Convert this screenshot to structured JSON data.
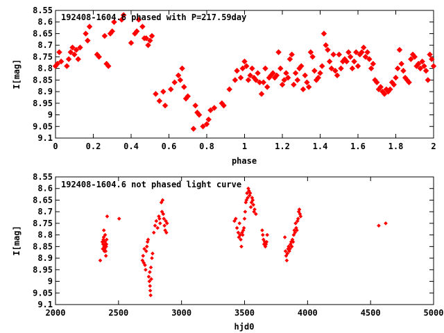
{
  "chart_data": [
    {
      "type": "scatter",
      "title": "192408-1604.6 phased with P=217.59day",
      "xlabel": "phase",
      "ylabel": "I[mag]",
      "xlim": [
        0,
        2
      ],
      "ylim": [
        9.1,
        8.55
      ],
      "xticks": [
        "0",
        "0.2",
        "0.4",
        "0.6",
        "0.8",
        "1",
        "1.2",
        "1.4",
        "1.6",
        "1.8",
        "2"
      ],
      "yticks": [
        "8.55",
        "8.6",
        "8.65",
        "8.7",
        "8.75",
        "8.8",
        "8.85",
        "8.9",
        "8.95",
        "9",
        "9.05",
        "9.1"
      ],
      "grid": false,
      "color": "#ff0000",
      "marker": "filled-diamond",
      "points": [
        [
          0.0,
          8.79
        ],
        [
          0.01,
          8.78
        ],
        [
          0.02,
          8.73
        ],
        [
          0.03,
          8.77
        ],
        [
          0.06,
          8.79
        ],
        [
          0.07,
          8.76
        ],
        [
          0.08,
          8.73
        ],
        [
          0.09,
          8.71
        ],
        [
          0.1,
          8.74
        ],
        [
          0.11,
          8.72
        ],
        [
          0.12,
          8.76
        ],
        [
          0.13,
          8.71
        ],
        [
          0.16,
          8.65
        ],
        [
          0.17,
          8.68
        ],
        [
          0.18,
          8.62
        ],
        [
          0.22,
          8.74
        ],
        [
          0.23,
          8.75
        ],
        [
          0.26,
          8.66
        ],
        [
          0.27,
          8.78
        ],
        [
          0.28,
          8.79
        ],
        [
          0.29,
          8.65
        ],
        [
          0.3,
          8.64
        ],
        [
          0.31,
          8.6
        ],
        [
          0.35,
          8.59
        ],
        [
          0.36,
          8.57
        ],
        [
          0.4,
          8.69
        ],
        [
          0.42,
          8.65
        ],
        [
          0.43,
          8.64
        ],
        [
          0.44,
          8.59
        ],
        [
          0.46,
          8.62
        ],
        [
          0.47,
          8.67
        ],
        [
          0.48,
          8.67
        ],
        [
          0.49,
          8.7
        ],
        [
          0.5,
          8.68
        ],
        [
          0.51,
          8.66
        ],
        [
          0.53,
          8.91
        ],
        [
          0.55,
          8.94
        ],
        [
          0.57,
          8.9
        ],
        [
          0.58,
          8.96
        ],
        [
          0.61,
          8.89
        ],
        [
          0.63,
          8.86
        ],
        [
          0.65,
          8.83
        ],
        [
          0.66,
          8.85
        ],
        [
          0.67,
          8.8
        ],
        [
          0.68,
          8.88
        ],
        [
          0.69,
          8.93
        ],
        [
          0.7,
          8.92
        ],
        [
          0.73,
          9.06
        ],
        [
          0.74,
          8.96
        ],
        [
          0.75,
          8.99
        ],
        [
          0.76,
          9.0
        ],
        [
          0.78,
          9.05
        ],
        [
          0.8,
          9.04
        ],
        [
          0.81,
          9.02
        ],
        [
          0.82,
          8.98
        ],
        [
          0.84,
          8.97
        ],
        [
          0.88,
          8.95
        ],
        [
          0.89,
          8.96
        ],
        [
          0.92,
          8.89
        ],
        [
          0.95,
          8.85
        ],
        [
          0.96,
          8.81
        ],
        [
          0.98,
          8.84
        ],
        [
          0.99,
          8.8
        ],
        [
          1.0,
          8.77
        ],
        [
          1.01,
          8.79
        ],
        [
          1.02,
          8.85
        ],
        [
          1.03,
          8.83
        ],
        [
          1.04,
          8.8
        ],
        [
          1.05,
          8.84
        ],
        [
          1.06,
          8.85
        ],
        [
          1.07,
          8.82
        ],
        [
          1.08,
          8.86
        ],
        [
          1.09,
          8.91
        ],
        [
          1.1,
          8.86
        ],
        [
          1.11,
          8.8
        ],
        [
          1.12,
          8.88
        ],
        [
          1.13,
          8.84
        ],
        [
          1.14,
          8.83
        ],
        [
          1.15,
          8.82
        ],
        [
          1.16,
          8.84
        ],
        [
          1.17,
          8.83
        ],
        [
          1.18,
          8.73
        ],
        [
          1.19,
          8.8
        ],
        [
          1.2,
          8.87
        ],
        [
          1.21,
          8.85
        ],
        [
          1.22,
          8.82
        ],
        [
          1.23,
          8.84
        ],
        [
          1.24,
          8.76
        ],
        [
          1.25,
          8.74
        ],
        [
          1.26,
          8.87
        ],
        [
          1.27,
          8.82
        ],
        [
          1.28,
          8.85
        ],
        [
          1.29,
          8.8
        ],
        [
          1.3,
          8.79
        ],
        [
          1.31,
          8.89
        ],
        [
          1.32,
          8.83
        ],
        [
          1.33,
          8.86
        ],
        [
          1.34,
          8.88
        ],
        [
          1.35,
          8.73
        ],
        [
          1.36,
          8.75
        ],
        [
          1.37,
          8.81
        ],
        [
          1.38,
          8.85
        ],
        [
          1.39,
          8.84
        ],
        [
          1.4,
          8.82
        ],
        [
          1.41,
          8.79
        ],
        [
          1.42,
          8.65
        ],
        [
          1.43,
          8.7
        ],
        [
          1.44,
          8.72
        ],
        [
          1.45,
          8.77
        ],
        [
          1.46,
          8.8
        ],
        [
          1.47,
          8.74
        ],
        [
          1.48,
          8.81
        ],
        [
          1.49,
          8.83
        ],
        [
          1.5,
          8.74
        ],
        [
          1.51,
          8.8
        ],
        [
          1.52,
          8.77
        ],
        [
          1.53,
          8.76
        ],
        [
          1.54,
          8.77
        ],
        [
          1.55,
          8.73
        ],
        [
          1.56,
          8.75
        ],
        [
          1.57,
          8.8
        ],
        [
          1.58,
          8.77
        ],
        [
          1.59,
          8.73
        ],
        [
          1.6,
          8.79
        ],
        [
          1.61,
          8.74
        ],
        [
          1.62,
          8.73
        ],
        [
          1.63,
          8.71
        ],
        [
          1.64,
          8.75
        ],
        [
          1.65,
          8.73
        ],
        [
          1.66,
          8.76
        ],
        [
          1.67,
          8.8
        ],
        [
          1.68,
          8.78
        ],
        [
          1.69,
          8.85
        ],
        [
          1.7,
          8.86
        ],
        [
          1.71,
          8.89
        ],
        [
          1.72,
          8.88
        ],
        [
          1.73,
          8.9
        ],
        [
          1.74,
          8.91
        ],
        [
          1.75,
          8.89
        ],
        [
          1.76,
          8.9
        ],
        [
          1.77,
          8.89
        ],
        [
          1.78,
          8.86
        ],
        [
          1.79,
          8.87
        ],
        [
          1.8,
          8.84
        ],
        [
          1.81,
          8.8
        ],
        [
          1.82,
          8.72
        ],
        [
          1.83,
          8.78
        ],
        [
          1.84,
          8.81
        ],
        [
          1.85,
          8.84
        ],
        [
          1.86,
          8.85
        ],
        [
          1.87,
          8.86
        ],
        [
          1.88,
          8.76
        ],
        [
          1.89,
          8.74
        ],
        [
          1.9,
          8.75
        ],
        [
          1.91,
          8.79
        ],
        [
          1.92,
          8.78
        ],
        [
          1.93,
          8.8
        ],
        [
          1.94,
          8.77
        ],
        [
          1.95,
          8.79
        ],
        [
          1.96,
          8.81
        ],
        [
          1.97,
          8.85
        ],
        [
          1.98,
          8.74
        ],
        [
          1.99,
          8.76
        ],
        [
          2.0,
          8.79
        ]
      ]
    },
    {
      "type": "scatter",
      "title": "192408-1604.6 not phased light curve",
      "xlabel": "hjd0",
      "ylabel": "I[mag]",
      "xlim": [
        2000,
        5000
      ],
      "ylim": [
        9.1,
        8.55
      ],
      "xticks": [
        "2000",
        "2500",
        "3000",
        "3500",
        "4000",
        "4500",
        "5000"
      ],
      "yticks": [
        "8.55",
        "8.6",
        "8.65",
        "8.7",
        "8.75",
        "8.8",
        "8.85",
        "8.9",
        "8.95",
        "9",
        "9.05",
        "9.1"
      ],
      "grid": false,
      "color": "#ff0000",
      "marker": "small-diamond",
      "points": [
        [
          2355,
          8.91
        ],
        [
          2372,
          8.83
        ],
        [
          2375,
          8.86
        ],
        [
          2378,
          8.84
        ],
        [
          2380,
          8.82
        ],
        [
          2382,
          8.81
        ],
        [
          2384,
          8.78
        ],
        [
          2386,
          8.85
        ],
        [
          2388,
          8.87
        ],
        [
          2390,
          8.86
        ],
        [
          2392,
          8.83
        ],
        [
          2394,
          8.8
        ],
        [
          2396,
          8.84
        ],
        [
          2398,
          8.87
        ],
        [
          2400,
          8.89
        ],
        [
          2402,
          8.85
        ],
        [
          2404,
          8.84
        ],
        [
          2406,
          8.82
        ],
        [
          2410,
          8.72
        ],
        [
          2505,
          8.73
        ],
        [
          2690,
          8.91
        ],
        [
          2695,
          8.89
        ],
        [
          2700,
          8.92
        ],
        [
          2705,
          8.86
        ],
        [
          2710,
          8.93
        ],
        [
          2715,
          8.95
        ],
        [
          2720,
          8.87
        ],
        [
          2725,
          8.85
        ],
        [
          2730,
          8.83
        ],
        [
          2735,
          8.82
        ],
        [
          2740,
          8.98
        ],
        [
          2745,
          9.0
        ],
        [
          2748,
          8.96
        ],
        [
          2750,
          9.02
        ],
        [
          2752,
          9.04
        ],
        [
          2755,
          9.06
        ],
        [
          2757,
          8.94
        ],
        [
          2760,
          8.99
        ],
        [
          2765,
          8.9
        ],
        [
          2770,
          8.88
        ],
        [
          2780,
          8.79
        ],
        [
          2790,
          8.76
        ],
        [
          2800,
          8.74
        ],
        [
          2810,
          8.77
        ],
        [
          2820,
          8.72
        ],
        [
          2825,
          8.73
        ],
        [
          2830,
          8.75
        ],
        [
          2840,
          8.66
        ],
        [
          2845,
          8.7
        ],
        [
          2850,
          8.65
        ],
        [
          2855,
          8.71
        ],
        [
          2860,
          8.73
        ],
        [
          2865,
          8.76
        ],
        [
          2870,
          8.78
        ],
        [
          2875,
          8.74
        ],
        [
          2880,
          8.79
        ],
        [
          2885,
          8.75
        ],
        [
          3420,
          8.74
        ],
        [
          3430,
          8.73
        ],
        [
          3440,
          8.77
        ],
        [
          3450,
          8.79
        ],
        [
          3455,
          8.81
        ],
        [
          3460,
          8.75
        ],
        [
          3465,
          8.8
        ],
        [
          3470,
          8.82
        ],
        [
          3475,
          8.85
        ],
        [
          3480,
          8.79
        ],
        [
          3485,
          8.8
        ],
        [
          3490,
          8.78
        ],
        [
          3495,
          8.77
        ],
        [
          3500,
          8.73
        ],
        [
          3505,
          8.7
        ],
        [
          3510,
          8.66
        ],
        [
          3515,
          8.65
        ],
        [
          3520,
          8.62
        ],
        [
          3525,
          8.64
        ],
        [
          3530,
          8.6
        ],
        [
          3535,
          8.61
        ],
        [
          3540,
          8.63
        ],
        [
          3545,
          8.62
        ],
        [
          3550,
          8.68
        ],
        [
          3555,
          8.66
        ],
        [
          3560,
          8.64
        ],
        [
          3565,
          8.65
        ],
        [
          3570,
          8.67
        ],
        [
          3575,
          8.7
        ],
        [
          3580,
          8.69
        ],
        [
          3590,
          8.71
        ],
        [
          3640,
          8.78
        ],
        [
          3645,
          8.8
        ],
        [
          3650,
          8.82
        ],
        [
          3655,
          8.84
        ],
        [
          3660,
          8.83
        ],
        [
          3665,
          8.85
        ],
        [
          3670,
          8.84
        ],
        [
          3675,
          8.83
        ],
        [
          3680,
          8.8
        ],
        [
          3820,
          8.81
        ],
        [
          3825,
          8.87
        ],
        [
          3830,
          8.89
        ],
        [
          3835,
          8.91
        ],
        [
          3840,
          8.88
        ],
        [
          3845,
          8.86
        ],
        [
          3850,
          8.85
        ],
        [
          3855,
          8.87
        ],
        [
          3860,
          8.86
        ],
        [
          3865,
          8.84
        ],
        [
          3870,
          8.83
        ],
        [
          3875,
          8.85
        ],
        [
          3880,
          8.82
        ],
        [
          3885,
          8.83
        ],
        [
          3890,
          8.8
        ],
        [
          3895,
          8.78
        ],
        [
          3900,
          8.79
        ],
        [
          3905,
          8.75
        ],
        [
          3910,
          8.77
        ],
        [
          3915,
          8.78
        ],
        [
          3920,
          8.74
        ],
        [
          3925,
          8.73
        ],
        [
          3930,
          8.7
        ],
        [
          3935,
          8.69
        ],
        [
          3940,
          8.71
        ],
        [
          3945,
          8.72
        ],
        [
          4565,
          8.76
        ],
        [
          4620,
          8.75
        ]
      ]
    }
  ]
}
